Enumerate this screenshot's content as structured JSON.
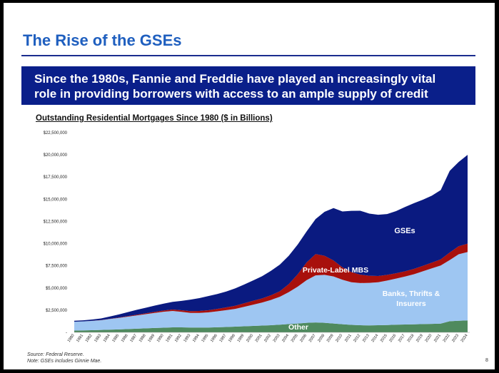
{
  "slide": {
    "title": "The Rise of the GSEs",
    "banner_line1": "Since the 1980s, Fannie and Freddie have played an increasingly vital",
    "banner_line2": "role in providing borrowers with access to an ample supply of credit",
    "source": "Source: Federal Reserve.",
    "note": "Note: GSEs includes Ginnie Mae.",
    "page_number": "8"
  },
  "colors": {
    "title": "#1f5fbf",
    "banner": "#0a1f8a",
    "other": "#4f8a5e",
    "banks": "#9ec6f2",
    "private_label": "#a8100c",
    "gses": "#0a1a80"
  },
  "chart_data": {
    "type": "area",
    "stacked": true,
    "title": "Outstanding Residential Mortgages Since 1980 ($ in Billions)",
    "xlabel": "",
    "ylabel": "",
    "ylim": [
      0,
      22500000
    ],
    "yticks": [
      {
        "value": 0,
        "label": "-"
      },
      {
        "value": 2500000,
        "label": "$2,500,000"
      },
      {
        "value": 5000000,
        "label": "$5,000,000"
      },
      {
        "value": 7500000,
        "label": "$7,500,000"
      },
      {
        "value": 10000000,
        "label": "$10,000,000"
      },
      {
        "value": 12500000,
        "label": "$12,500,000"
      },
      {
        "value": 15000000,
        "label": "$15,000,000"
      },
      {
        "value": 17500000,
        "label": "$17,500,000"
      },
      {
        "value": 20000000,
        "label": "$20,000,000"
      },
      {
        "value": 22500000,
        "label": "$22,500,000"
      }
    ],
    "x": [
      "1980",
      "1981",
      "1982",
      "1983",
      "1984",
      "1985",
      "1986",
      "1987",
      "1988",
      "1989",
      "1990",
      "1991",
      "1992",
      "1993",
      "1994",
      "1995",
      "1996",
      "1997",
      "1998",
      "1999",
      "2000",
      "2001",
      "2002",
      "2003",
      "2004",
      "2005",
      "2006",
      "2007",
      "2008",
      "2009",
      "2010",
      "2011",
      "2012",
      "2013",
      "2014",
      "2015",
      "2016",
      "2017",
      "2018",
      "2019",
      "2020",
      "2021",
      "2022",
      "2023",
      "2024"
    ],
    "series": [
      {
        "key": "other",
        "name": "Other",
        "color": "#4f8a5e",
        "values": [
          200000,
          220000,
          240000,
          270000,
          300000,
          330000,
          370000,
          410000,
          450000,
          490000,
          520000,
          560000,
          560000,
          540000,
          540000,
          550000,
          570000,
          600000,
          640000,
          680000,
          720000,
          760000,
          800000,
          860000,
          930000,
          1000000,
          1080000,
          1120000,
          1080000,
          1000000,
          920000,
          840000,
          800000,
          780000,
          800000,
          830000,
          860000,
          880000,
          900000,
          930000,
          960000,
          980000,
          1250000,
          1300000,
          1350000
        ]
      },
      {
        "key": "banks",
        "name": "Banks, Thrifts & Insurers",
        "color": "#9ec6f2",
        "values": [
          1000000,
          1020000,
          1050000,
          1100000,
          1200000,
          1300000,
          1400000,
          1500000,
          1600000,
          1700000,
          1800000,
          1850000,
          1750000,
          1650000,
          1650000,
          1700000,
          1800000,
          1900000,
          2000000,
          2200000,
          2400000,
          2600000,
          2850000,
          3150000,
          3600000,
          4150000,
          4800000,
          5300000,
          5400000,
          5300000,
          5000000,
          4800000,
          4750000,
          4800000,
          4850000,
          5000000,
          5200000,
          5400000,
          5650000,
          5950000,
          6250000,
          6550000,
          6900000,
          7500000,
          7700000
        ]
      },
      {
        "key": "private_label",
        "name": "Private-Label MBS",
        "color": "#a8100c",
        "values": [
          0,
          0,
          10000,
          20000,
          30000,
          40000,
          60000,
          80000,
          100000,
          120000,
          140000,
          160000,
          180000,
          200000,
          220000,
          240000,
          270000,
          310000,
          360000,
          400000,
          430000,
          460000,
          530000,
          620000,
          900000,
          1400000,
          2000000,
          2400000,
          2150000,
          1800000,
          1400000,
          1150000,
          950000,
          800000,
          700000,
          650000,
          600000,
          600000,
          600000,
          620000,
          640000,
          700000,
          850000,
          900000,
          950000
        ]
      },
      {
        "key": "gses",
        "name": "GSEs",
        "color": "#0a1a80",
        "values": [
          100000,
          120000,
          150000,
          180000,
          250000,
          350000,
          450000,
          550000,
          620000,
          700000,
          780000,
          860000,
          1050000,
          1300000,
          1450000,
          1600000,
          1680000,
          1790000,
          1950000,
          2100000,
          2300000,
          2500000,
          2750000,
          3000000,
          3200000,
          3350000,
          3500000,
          3950000,
          4950000,
          5900000,
          6300000,
          6900000,
          7200000,
          7000000,
          6900000,
          6850000,
          7000000,
          7250000,
          7400000,
          7450000,
          7550000,
          7800000,
          9200000,
          9500000,
          10000000
        ]
      }
    ],
    "annotations": [
      "GSEs",
      "Private-Label MBS",
      "Banks, Thrifts &",
      "Insurers",
      "Other"
    ],
    "legend": "none",
    "grid": false
  }
}
